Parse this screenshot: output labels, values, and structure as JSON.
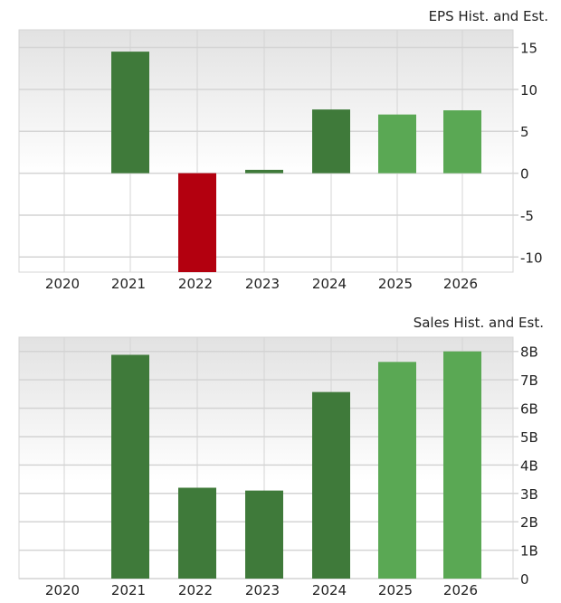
{
  "chart_data": [
    {
      "type": "bar",
      "title": "EPS Hist. and Est.",
      "categories": [
        "2020",
        "2021",
        "2022",
        "2023",
        "2024",
        "2025",
        "2026"
      ],
      "values": [
        null,
        14.5,
        -12,
        0.4,
        7.6,
        7.0,
        7.5
      ],
      "bar_kind": [
        "none",
        "historical",
        "historical",
        "historical",
        "historical",
        "estimate",
        "estimate"
      ],
      "ylim": [
        -11.8,
        17.1
      ],
      "yticks": [
        15,
        10,
        5,
        0,
        -5,
        -10
      ],
      "ytick_labels": [
        "15",
        "10",
        "5",
        "0",
        "-5",
        "-10"
      ],
      "grid": true,
      "y_axis_side": "right"
    },
    {
      "type": "bar",
      "title": "Sales Hist. and Est.",
      "categories": [
        "2020",
        "2021",
        "2022",
        "2023",
        "2024",
        "2025",
        "2026"
      ],
      "values": [
        null,
        7.88,
        3.2,
        3.1,
        6.57,
        7.63,
        8.0
      ],
      "unit": "B",
      "bar_kind": [
        "none",
        "historical",
        "historical",
        "historical",
        "historical",
        "estimate",
        "estimate"
      ],
      "ylim": [
        0,
        8.5
      ],
      "yticks": [
        8,
        7,
        6,
        5,
        4,
        3,
        2,
        1,
        0
      ],
      "ytick_labels": [
        "8B",
        "7B",
        "6B",
        "5B",
        "4B",
        "3B",
        "2B",
        "1B",
        "0"
      ],
      "grid": true,
      "y_axis_side": "right"
    }
  ],
  "colors": {
    "historical_positive": "#3f7a3a",
    "estimate": "#5aa854",
    "negative": "#b3000f",
    "grid": "#d4d4d4",
    "background_top": "#e4e4e4",
    "background_bottom": "#ffffff"
  }
}
